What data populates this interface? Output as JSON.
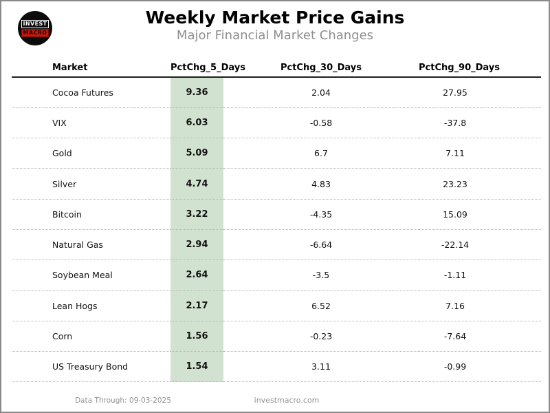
{
  "header": {
    "logo": {
      "line1": "INVEST",
      "line2": "MACRO"
    },
    "title": "Weekly Market Price Gains",
    "subtitle": "Major Financial Market Changes"
  },
  "table": {
    "columns": [
      "Market",
      "PctChg_5_Days",
      "PctChg_30_Days",
      "PctChg_90_Days"
    ],
    "highlight_color": "#d1e3d0",
    "rows": [
      {
        "market": "Cocoa Futures",
        "d5": "9.36",
        "d30": "2.04",
        "d90": "27.95"
      },
      {
        "market": "VIX",
        "d5": "6.03",
        "d30": "-0.58",
        "d90": "-37.8"
      },
      {
        "market": "Gold",
        "d5": "5.09",
        "d30": "6.7",
        "d90": "7.11"
      },
      {
        "market": "Silver",
        "d5": "4.74",
        "d30": "4.83",
        "d90": "23.23"
      },
      {
        "market": "Bitcoin",
        "d5": "3.22",
        "d30": "-4.35",
        "d90": "15.09"
      },
      {
        "market": "Natural Gas",
        "d5": "2.94",
        "d30": "-6.64",
        "d90": "-22.14"
      },
      {
        "market": "Soybean Meal",
        "d5": "2.64",
        "d30": "-3.5",
        "d90": "-1.11"
      },
      {
        "market": "Lean Hogs",
        "d5": "2.17",
        "d30": "6.52",
        "d90": "7.16"
      },
      {
        "market": "Corn",
        "d5": "1.56",
        "d30": "-0.23",
        "d90": "-7.64"
      },
      {
        "market": "US Treasury Bond",
        "d5": "1.54",
        "d30": "3.11",
        "d90": "-0.99"
      }
    ]
  },
  "footer": {
    "data_through": "Data Through: 09-03-2025",
    "website": "investmacro.com"
  },
  "chart_data": {
    "type": "table",
    "title": "Weekly Market Price Gains",
    "subtitle": "Major Financial Market Changes",
    "columns": [
      "Market",
      "PctChg_5_Days",
      "PctChg_30_Days",
      "PctChg_90_Days"
    ],
    "highlighted_column": "PctChg_5_Days",
    "highlight_color": "#d1e3d0",
    "rows": [
      [
        "Cocoa Futures",
        9.36,
        2.04,
        27.95
      ],
      [
        "VIX",
        6.03,
        -0.58,
        -37.8
      ],
      [
        "Gold",
        5.09,
        6.7,
        7.11
      ],
      [
        "Silver",
        4.74,
        4.83,
        23.23
      ],
      [
        "Bitcoin",
        3.22,
        -4.35,
        15.09
      ],
      [
        "Natural Gas",
        2.94,
        -6.64,
        -22.14
      ],
      [
        "Soybean Meal",
        2.64,
        -3.5,
        -1.11
      ],
      [
        "Lean Hogs",
        2.17,
        6.52,
        7.16
      ],
      [
        "Corn",
        1.56,
        -0.23,
        -7.64
      ],
      [
        "US Treasury Bond",
        1.54,
        3.11,
        -0.99
      ]
    ],
    "footer_notes": [
      "Data Through: 09-03-2025",
      "investmacro.com"
    ],
    "sorted_by": "PctChg_5_Days descending"
  }
}
